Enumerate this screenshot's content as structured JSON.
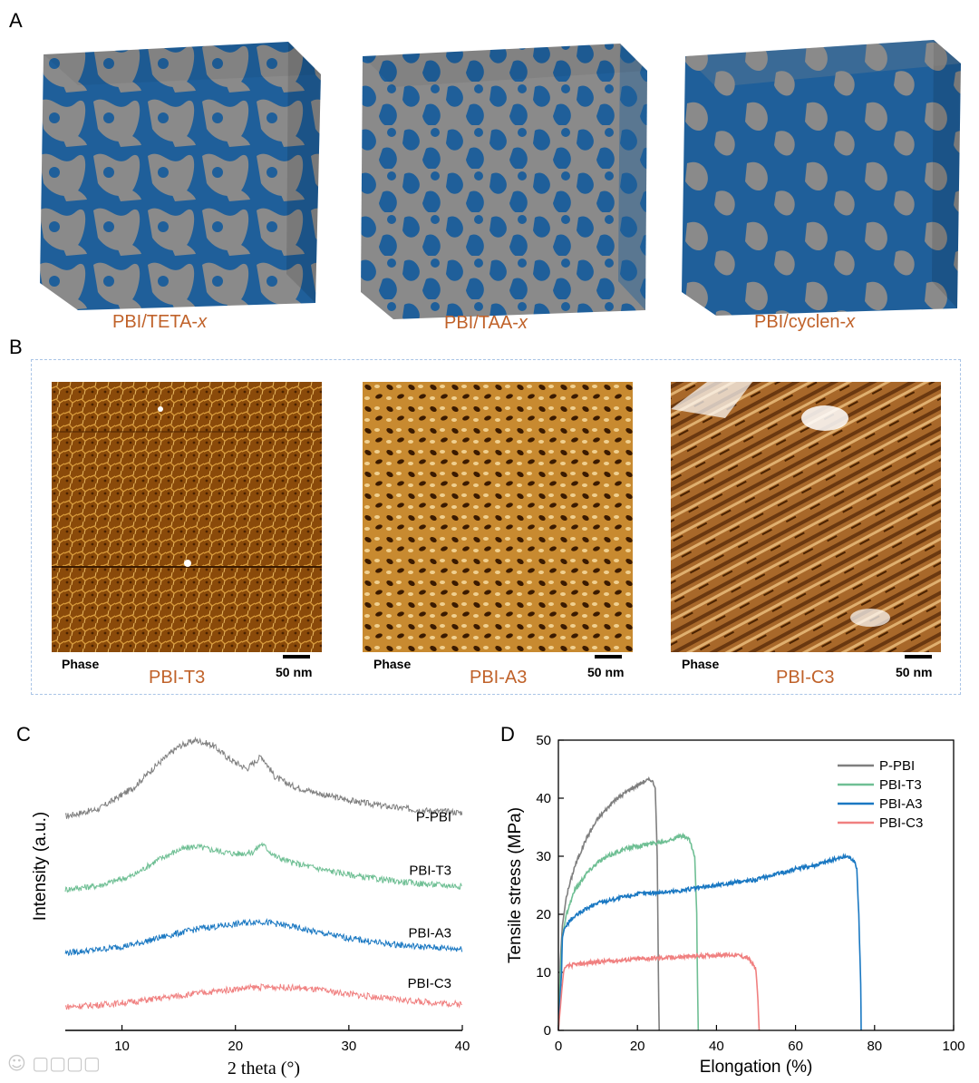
{
  "panels": {
    "a": {
      "label": "A",
      "cubes": [
        {
          "caption_main": "PBI/TETA-",
          "caption_italic": "x"
        },
        {
          "caption_main": "PBI/TAA-",
          "caption_italic": "x"
        },
        {
          "caption_main": "PBI/cyclen-",
          "caption_italic": "x"
        }
      ]
    },
    "b": {
      "label": "B",
      "images": [
        {
          "name": "PBI-T3",
          "phase": "Phase",
          "scale": "50 nm"
        },
        {
          "name": "PBI-A3",
          "phase": "Phase",
          "scale": "50 nm"
        },
        {
          "name": "PBI-C3",
          "phase": "Phase",
          "scale": "50 nm"
        }
      ]
    },
    "c": {
      "label": "C"
    },
    "d": {
      "label": "D"
    }
  },
  "colors": {
    "cube_blue": "#1f5f9a",
    "cube_gray": "#8a8a8a",
    "caption_orange": "#c0622a",
    "frame_blue": "#a9c4e6",
    "p_pbi": "#7f7f7f",
    "pbi_t3": "#6fbf94",
    "pbi_a3": "#1a78c2",
    "pbi_c3": "#f08080"
  },
  "chart_data": [
    {
      "type": "line",
      "title": "",
      "xlabel": "2 theta (°)",
      "ylabel": "Intensity (a.u.)",
      "xlim": [
        5,
        40
      ],
      "xticks": [
        10,
        20,
        30,
        40
      ],
      "yticks_shown": false,
      "series": [
        {
          "name": "P-PBI",
          "color": "#7f7f7f",
          "offset": 3.0,
          "x": [
            5,
            8,
            11,
            13,
            15,
            16.5,
            18,
            19.5,
            21,
            22.3,
            23.5,
            25,
            28,
            31,
            34,
            37,
            40
          ],
          "y": [
            0.0,
            0.12,
            0.45,
            0.8,
            1.1,
            1.2,
            1.12,
            0.9,
            0.75,
            0.95,
            0.62,
            0.48,
            0.33,
            0.22,
            0.14,
            0.09,
            0.06
          ]
        },
        {
          "name": "PBI-T3",
          "color": "#6fbf94",
          "offset": 1.85,
          "x": [
            5,
            8,
            11,
            13,
            15,
            16.5,
            18,
            20,
            21.5,
            22.3,
            23.5,
            25,
            28,
            31,
            34,
            37,
            40
          ],
          "y": [
            0.0,
            0.06,
            0.22,
            0.45,
            0.62,
            0.68,
            0.62,
            0.56,
            0.58,
            0.72,
            0.52,
            0.42,
            0.3,
            0.2,
            0.13,
            0.08,
            0.05
          ]
        },
        {
          "name": "PBI-A3",
          "color": "#1a78c2",
          "offset": 0.85,
          "x": [
            5,
            8,
            11,
            14,
            17,
            20,
            22,
            23.5,
            25,
            27,
            30,
            33,
            36,
            40
          ],
          "y": [
            0.0,
            0.05,
            0.13,
            0.27,
            0.39,
            0.45,
            0.5,
            0.46,
            0.41,
            0.33,
            0.23,
            0.15,
            0.1,
            0.06
          ]
        },
        {
          "name": "PBI-C3",
          "color": "#f08080",
          "offset": 0.0,
          "x": [
            5,
            8,
            11,
            14,
            17,
            20,
            22,
            24,
            26,
            28,
            31,
            34,
            37,
            40
          ],
          "y": [
            0.0,
            0.03,
            0.08,
            0.15,
            0.22,
            0.28,
            0.31,
            0.31,
            0.29,
            0.25,
            0.18,
            0.12,
            0.07,
            0.04
          ]
        }
      ]
    },
    {
      "type": "line",
      "title": "",
      "xlabel": "Elongation (%)",
      "ylabel": "Tensile stress (MPa)",
      "xlim": [
        0,
        100
      ],
      "ylim": [
        0,
        50
      ],
      "xticks": [
        0,
        20,
        40,
        60,
        80,
        100
      ],
      "yticks": [
        0,
        10,
        20,
        30,
        40,
        50
      ],
      "legend_position": "top-right",
      "series": [
        {
          "name": "P-PBI",
          "color": "#7f7f7f",
          "x": [
            0,
            0.5,
            1,
            2,
            4,
            7,
            10,
            14,
            18,
            22,
            23.5,
            24.5,
            25,
            25.3,
            25.5
          ],
          "y": [
            0,
            12,
            18,
            23,
            28,
            33,
            36.5,
            39.5,
            41.5,
            43,
            43.2,
            42,
            30,
            10,
            0
          ]
        },
        {
          "name": "PBI-T3",
          "color": "#6fbf94",
          "x": [
            0,
            0.5,
            1,
            2,
            4,
            7,
            10,
            14,
            18,
            22,
            26,
            29,
            31,
            33,
            34.5,
            35,
            35.2,
            35.4
          ],
          "y": [
            0,
            10,
            16,
            20,
            24,
            27,
            29,
            30.5,
            31.5,
            32,
            32.5,
            33,
            33.5,
            33,
            30,
            20,
            8,
            0
          ]
        },
        {
          "name": "PBI-A3",
          "color": "#1a78c2",
          "x": [
            0,
            0.8,
            1,
            1.5,
            3,
            6,
            10,
            20,
            30,
            40,
            50,
            60,
            65,
            70,
            73,
            74.5,
            75.5,
            76,
            76.5,
            76.6
          ],
          "y": [
            0,
            10,
            16,
            17.5,
            19,
            20.5,
            22,
            23.5,
            24,
            25,
            26,
            27.8,
            28.5,
            29.5,
            30,
            29.5,
            28,
            20,
            8,
            0
          ]
        },
        {
          "name": "PBI-C3",
          "color": "#f08080",
          "x": [
            0,
            1,
            1.3,
            1.6,
            3,
            6,
            10,
            20,
            30,
            40,
            45,
            48,
            50,
            50.5,
            50.8
          ],
          "y": [
            0,
            8,
            10,
            10.8,
            11.2,
            11.5,
            11.8,
            12.3,
            12.6,
            13,
            13,
            12.5,
            10.5,
            5,
            0
          ]
        }
      ]
    }
  ]
}
